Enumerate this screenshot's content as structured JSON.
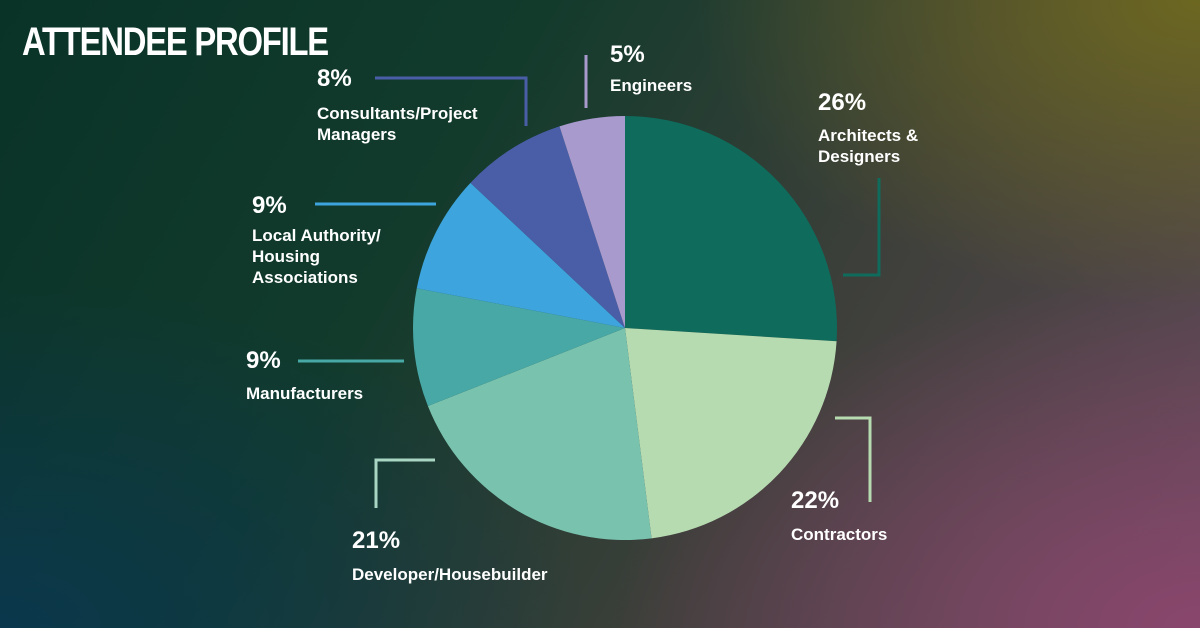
{
  "title": "ATTENDEE PROFILE",
  "chart_data": {
    "type": "pie",
    "title": "ATTENDEE PROFILE",
    "legend": "none",
    "slices": [
      {
        "label": "Architects & Designers",
        "label_lines": [
          "Architects &",
          "Designers"
        ],
        "value": 26,
        "display": "26%",
        "color": "#0f6b5b",
        "leader": "#0f6b5b"
      },
      {
        "label": "Contractors",
        "label_lines": [
          "Contractors"
        ],
        "value": 22,
        "display": "22%",
        "color": "#b7dbb1",
        "leader": "#b7dbb1"
      },
      {
        "label": "Developer/Housebuilder",
        "label_lines": [
          "Developer/Housebuilder"
        ],
        "value": 21,
        "display": "21%",
        "color": "#79c2ae",
        "leader": "#a9d6c3"
      },
      {
        "label": "Manufacturers",
        "label_lines": [
          "Manufacturers"
        ],
        "value": 9,
        "display": "9%",
        "color": "#47a8a6",
        "leader": "#47a8a6"
      },
      {
        "label": "Local Authority/ Housing Associations",
        "label_lines": [
          "Local Authority/",
          "Housing",
          "Associations"
        ],
        "value": 9,
        "display": "9%",
        "color": "#3ea4dd",
        "leader": "#3ea4dd"
      },
      {
        "label": "Consultants/Project Managers",
        "label_lines": [
          "Consultants/Project",
          "Managers"
        ],
        "value": 8,
        "display": "8%",
        "color": "#4a5ea8",
        "leader": "#4a5ea8"
      },
      {
        "label": "Engineers",
        "label_lines": [
          "Engineers"
        ],
        "value": 5,
        "display": "5%",
        "color": "#a89acd",
        "leader": "#a89acd"
      }
    ]
  }
}
